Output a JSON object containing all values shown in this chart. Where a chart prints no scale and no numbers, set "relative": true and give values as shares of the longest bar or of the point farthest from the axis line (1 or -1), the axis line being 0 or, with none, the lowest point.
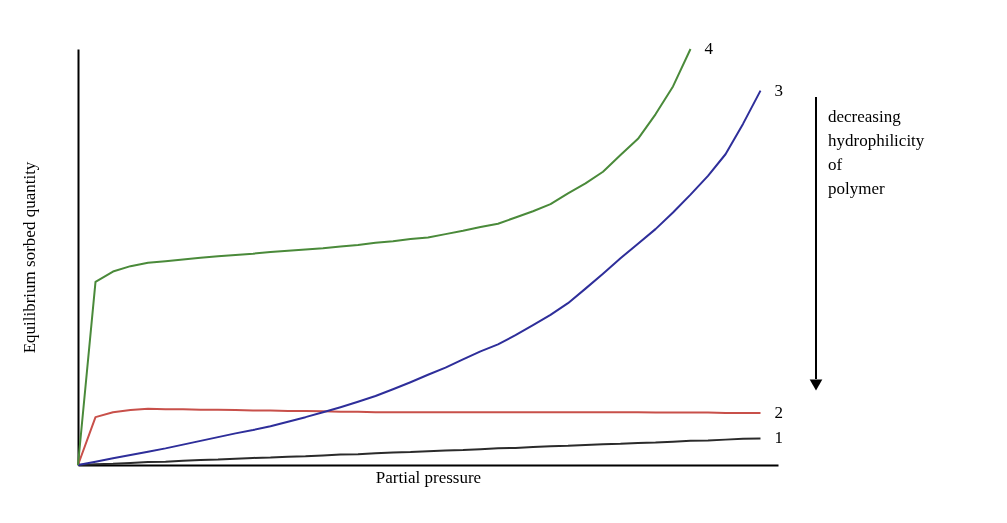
{
  "chart_data": {
    "type": "line",
    "relative": true,
    "xlabel": "Partial pressure",
    "ylabel": "Equilibrium sorbed quantity",
    "categories": [
      null,
      null,
      null,
      null,
      null,
      null,
      null,
      null,
      null,
      null,
      null,
      null,
      null,
      null,
      null,
      null,
      null,
      null,
      null,
      null,
      null,
      null,
      null,
      null,
      null,
      null,
      null,
      null,
      null,
      null,
      null,
      null,
      null,
      null,
      null,
      null,
      null,
      null,
      null,
      null,
      null
    ],
    "series": [
      {
        "name": "1",
        "color": "#2b2b2b",
        "values": [
          0,
          0.002,
          0.003,
          0.005,
          0.007,
          0.008,
          0.01,
          0.012,
          0.013,
          0.015,
          0.017,
          0.018,
          0.02,
          0.021,
          0.023,
          0.025,
          0.026,
          0.028,
          0.03,
          0.031,
          0.033,
          0.035,
          0.036,
          0.038,
          0.04,
          0.041,
          0.043,
          0.045,
          0.046,
          0.048,
          0.05,
          0.051,
          0.053,
          0.054,
          0.056,
          0.058,
          0.059,
          0.061,
          0.063,
          0.064,
          null
        ]
      },
      {
        "name": "2",
        "color": "#c8504a",
        "values": [
          0,
          0.115,
          0.127,
          0.132,
          0.135,
          0.134,
          0.134,
          0.133,
          0.133,
          0.132,
          0.131,
          0.131,
          0.13,
          0.13,
          0.129,
          0.128,
          0.128,
          0.127,
          0.127,
          0.127,
          0.127,
          0.127,
          0.127,
          0.127,
          0.127,
          0.127,
          0.127,
          0.127,
          0.127,
          0.127,
          0.127,
          0.127,
          0.127,
          0.126,
          0.126,
          0.126,
          0.126,
          0.125,
          0.125,
          0.125,
          null
        ]
      },
      {
        "name": "3",
        "color": "#2e2e9a",
        "values": [
          0,
          0.008,
          0.016,
          0.024,
          0.032,
          0.04,
          0.049,
          0.058,
          0.067,
          0.076,
          0.084,
          0.093,
          0.104,
          0.115,
          0.127,
          0.139,
          0.152,
          0.166,
          0.182,
          0.199,
          0.217,
          0.234,
          0.254,
          0.273,
          0.29,
          0.312,
          0.336,
          0.361,
          0.389,
          0.424,
          0.46,
          0.497,
          0.532,
          0.567,
          0.607,
          0.65,
          0.695,
          0.747,
          0.82,
          0.9,
          null
        ]
      },
      {
        "name": "4",
        "color": "#4a8a3a",
        "values": [
          0,
          0.44,
          0.465,
          0.478,
          0.486,
          0.49,
          0.494,
          0.498,
          0.502,
          0.505,
          0.508,
          0.512,
          0.515,
          0.518,
          0.521,
          0.525,
          0.529,
          0.534,
          0.538,
          0.543,
          0.547,
          0.555,
          0.563,
          0.572,
          0.58,
          0.595,
          0.61,
          0.627,
          0.653,
          0.677,
          0.705,
          0.745,
          0.784,
          0.843,
          0.91,
          1,
          null,
          null,
          null,
          null,
          null
        ]
      }
    ],
    "annotations": [
      "decreasing hydrophilicity of polymer"
    ]
  }
}
